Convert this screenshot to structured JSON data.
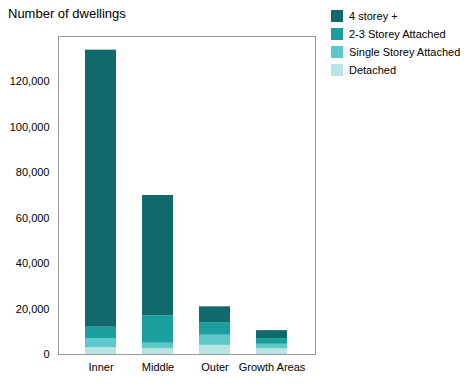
{
  "chart_data": {
    "type": "bar",
    "stacked": true,
    "categories": [
      "Inner",
      "Middle",
      "Outer",
      "Growth Areas"
    ],
    "series": [
      {
        "name": "4 storey +",
        "color": "#12696b",
        "values": [
          122000,
          53000,
          7000,
          3500
        ]
      },
      {
        "name": "2-3 Storey Attached",
        "color": "#1a9e9e",
        "values": [
          5000,
          12000,
          5500,
          2500
        ]
      },
      {
        "name": "Single Storey Attached",
        "color": "#5ec8c8",
        "values": [
          4000,
          2500,
          4500,
          2000
        ]
      },
      {
        "name": "Detached",
        "color": "#b8e4e4",
        "values": [
          3000,
          2500,
          4000,
          2500
        ]
      }
    ],
    "ylabel": "Number of dwellings",
    "ylim": [
      0,
      140000
    ],
    "yticks": [
      0,
      {
        "value": 20000,
        "label": "20,000"
      },
      {
        "value": 40000,
        "label": "40,000"
      },
      {
        "value": 60000,
        "label": "60,000"
      },
      {
        "value": 80000,
        "label": "80,000"
      },
      {
        "value": 100000,
        "label": "100,000"
      },
      {
        "value": 120000,
        "label": "120,000"
      }
    ],
    "legend": "upper right",
    "grid": false
  }
}
